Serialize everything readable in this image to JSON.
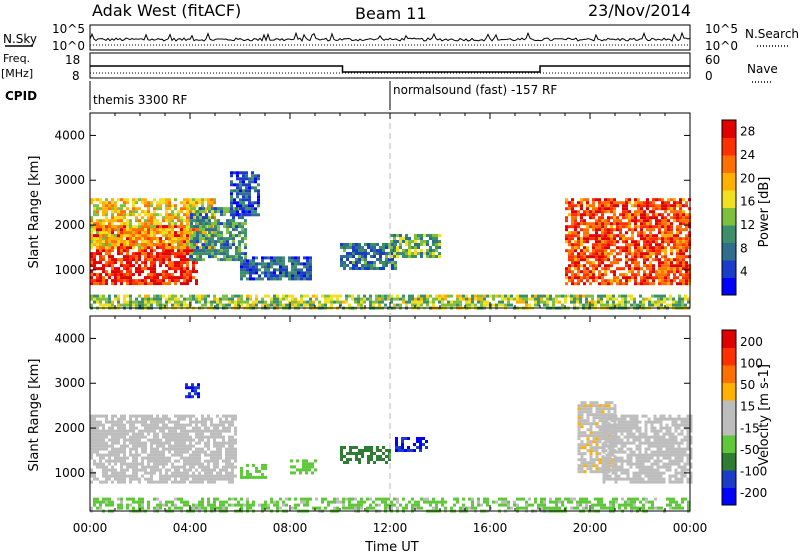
{
  "header": {
    "station": "Adak West (fitACF)",
    "beam": "Beam 11",
    "date": "23/Nov/2014"
  },
  "side_labels": {
    "nsky": "N.Sky",
    "freq_line1": "Freq.",
    "freq_line2": "[MHz]",
    "cpid": "CPID",
    "nsearch": "N.Search",
    "nave": "Nave"
  },
  "noise_axis": {
    "top": "10^5",
    "bottom": "10^0"
  },
  "freq_axis": {
    "left_ticks": [
      "18",
      "8"
    ],
    "right_ticks": [
      "60",
      "0"
    ]
  },
  "cpid_segments": [
    "themis 3300 RF",
    "normalsound (fast) -157 RF"
  ],
  "colors": {
    "power_scale": [
      "#0000ff",
      "#1a3cc8",
      "#2f6e8e",
      "#3d8f6a",
      "#7fbf3f",
      "#f0e020",
      "#ffb000",
      "#ff7000",
      "#ff3000",
      "#e00000"
    ],
    "velocity_scale": [
      "#0000ff",
      "#1a3cc8",
      "#2e7d32",
      "#5fc83a",
      "#bdbdbd",
      "#bdbdbd",
      "#ffb000",
      "#ff7000",
      "#ff3000",
      "#e00000"
    ],
    "ground_scatter": "#bdbdbd"
  },
  "chart_data": [
    {
      "type": "heatmap",
      "panel": "power",
      "ylabel": "Slant Range [km]",
      "yticks": [
        "1000",
        "2000",
        "3000",
        "4000"
      ],
      "ylim": [
        150,
        4500
      ],
      "xlim": [
        "00:00",
        "24:00"
      ],
      "colorbar": {
        "label": "Power [dB]",
        "ticks": [
          "4",
          "8",
          "12",
          "16",
          "20",
          "24",
          "28"
        ],
        "range": [
          0,
          30
        ]
      },
      "regions": [
        {
          "t0": 0.0,
          "t1": 4.3,
          "r0": 700,
          "r1": 2000,
          "value": 27
        },
        {
          "t0": 0.0,
          "t1": 5.0,
          "r0": 1500,
          "r1": 2600,
          "value": 18
        },
        {
          "t0": 4.0,
          "t1": 6.2,
          "r0": 1200,
          "r1": 2400,
          "value": 10
        },
        {
          "t0": 5.6,
          "t1": 6.8,
          "r0": 2200,
          "r1": 3200,
          "value": 6
        },
        {
          "t0": 6.0,
          "t1": 8.8,
          "r0": 800,
          "r1": 1300,
          "value": 7
        },
        {
          "t0": 10.0,
          "t1": 12.2,
          "r0": 1000,
          "r1": 1600,
          "value": 8
        },
        {
          "t0": 12.0,
          "t1": 14.0,
          "r0": 1300,
          "r1": 1800,
          "value": 12
        },
        {
          "t0": 19.0,
          "t1": 24.0,
          "r0": 700,
          "r1": 2600,
          "value": 25
        },
        {
          "t0": 0.0,
          "t1": 24.0,
          "r0": 150,
          "r1": 450,
          "value": 14
        }
      ]
    },
    {
      "type": "heatmap",
      "panel": "velocity",
      "ylabel": "Slant Range [km]",
      "yticks": [
        "1000",
        "2000",
        "3000",
        "4000"
      ],
      "ylim": [
        150,
        4500
      ],
      "xlim": [
        "00:00",
        "24:00"
      ],
      "xticks": [
        "00:00",
        "04:00",
        "08:00",
        "12:00",
        "16:00",
        "20:00",
        "00:00"
      ],
      "xlabel": "Time UT",
      "colorbar": {
        "label": "Velocity [m s-1]",
        "ticks": [
          "200",
          "100",
          "50",
          "15",
          "-15",
          "-50",
          "-100",
          "-200"
        ],
        "range": [
          -250,
          250
        ]
      },
      "regions": [
        {
          "t0": 0.0,
          "t1": 5.8,
          "r0": 800,
          "r1": 2300,
          "value": 0
        },
        {
          "t0": 3.8,
          "t1": 4.3,
          "r0": 2700,
          "r1": 3000,
          "value": -200
        },
        {
          "t0": 6.0,
          "t1": 7.0,
          "r0": 900,
          "r1": 1200,
          "value": -80
        },
        {
          "t0": 8.0,
          "t1": 9.0,
          "r0": 1000,
          "r1": 1300,
          "value": -70
        },
        {
          "t0": 10.0,
          "t1": 12.0,
          "r0": 1200,
          "r1": 1600,
          "value": -120
        },
        {
          "t0": 12.2,
          "t1": 13.5,
          "r0": 1500,
          "r1": 1800,
          "value": -200
        },
        {
          "t0": 19.5,
          "t1": 21.0,
          "r0": 1000,
          "r1": 2600,
          "value": 40
        },
        {
          "t0": 20.5,
          "t1": 24.0,
          "r0": 800,
          "r1": 2300,
          "value": 0
        },
        {
          "t0": 0.0,
          "t1": 24.0,
          "r0": 150,
          "r1": 450,
          "value": -60
        }
      ]
    }
  ]
}
